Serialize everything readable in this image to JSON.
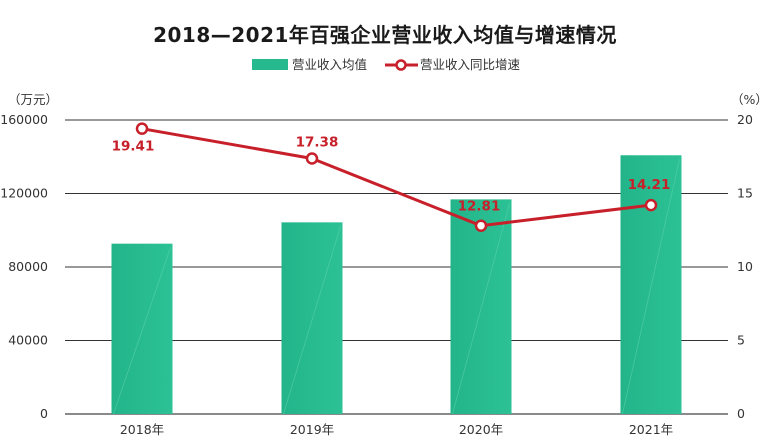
{
  "chart_data": {
    "type": "bar",
    "title": "2018—2021年百强企业营业收入均值与增速情况",
    "categories": [
      "2018年",
      "2019年",
      "2020年",
      "2021年"
    ],
    "y_left": {
      "unit": "（万元）",
      "ylim": [
        0,
        160000
      ],
      "ticks": [
        0,
        40000,
        80000,
        120000,
        160000
      ]
    },
    "y_right": {
      "unit": "（%）",
      "ylim": [
        0,
        20
      ],
      "ticks": [
        0,
        5,
        10,
        15,
        20
      ]
    },
    "series": [
      {
        "name": "营业收入均值",
        "type": "bar",
        "axis": "left",
        "color": "#26b98e",
        "values": [
          92700,
          104300,
          116800,
          140800
        ]
      },
      {
        "name": "营业收入同比增速",
        "type": "line",
        "axis": "right",
        "color": "#c8202a",
        "values": [
          19.41,
          17.38,
          12.81,
          14.21
        ],
        "labels": [
          "19.41",
          "17.38",
          "12.81",
          "14.21"
        ]
      }
    ],
    "grid": true,
    "legend_position": "top-center"
  }
}
